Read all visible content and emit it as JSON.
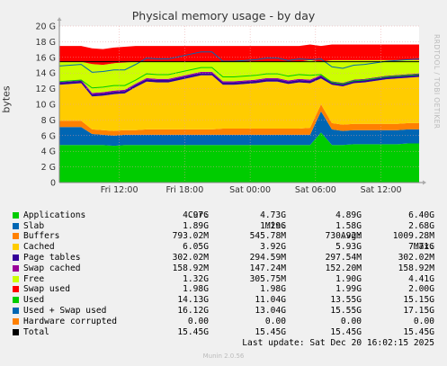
{
  "chart_data": {
    "type": "area",
    "title": "Physical memory usage - by day",
    "ylabel": "bytes",
    "ylim": [
      0,
      20
    ],
    "yticks": [
      "0",
      "2 G",
      "4 G",
      "6 G",
      "8 G",
      "10 G",
      "12 G",
      "14 G",
      "16 G",
      "18 G",
      "20 G"
    ],
    "xticks": [
      "Fri 12:00",
      "Fri 18:00",
      "Sat 00:00",
      "Sat 06:00",
      "Sat 12:00"
    ],
    "x": [
      "Fri 06:30",
      "Fri 07:30",
      "Fri 08:30",
      "Fri 09:30",
      "Fri 10:30",
      "Fri 11:30",
      "Fri 12:30",
      "Fri 13:30",
      "Fri 14:30",
      "Fri 15:30",
      "Fri 16:30",
      "Fri 17:30",
      "Fri 18:30",
      "Fri 19:30",
      "Fri 20:30",
      "Fri 21:30",
      "Fri 22:30",
      "Fri 23:30",
      "Sat 00:30",
      "Sat 01:30",
      "Sat 02:30",
      "Sat 03:30",
      "Sat 04:30",
      "Sat 05:30",
      "Sat 06:30",
      "Sat 07:30",
      "Sat 08:30",
      "Sat 09:30",
      "Sat 10:30",
      "Sat 11:30",
      "Sat 12:30",
      "Sat 13:30",
      "Sat 14:30",
      "Sat 15:30"
    ],
    "grid": true,
    "series": [
      {
        "name": "Applications",
        "color": "#00cc00",
        "values": [
          4.8,
          4.8,
          4.8,
          4.8,
          4.8,
          4.7,
          4.8,
          4.8,
          4.8,
          4.8,
          4.8,
          4.8,
          4.8,
          4.8,
          4.8,
          4.8,
          4.8,
          4.8,
          4.8,
          4.8,
          4.8,
          4.8,
          4.8,
          4.8,
          6.4,
          4.8,
          4.8,
          4.9,
          4.9,
          4.9,
          4.9,
          4.9,
          5.0,
          5.0
        ]
      },
      {
        "name": "Slab",
        "color": "#0066b3",
        "values": [
          2.3,
          2.3,
          2.3,
          1.4,
          1.3,
          1.3,
          1.3,
          1.3,
          1.3,
          1.3,
          1.3,
          1.3,
          1.3,
          1.3,
          1.3,
          1.3,
          1.3,
          1.3,
          1.3,
          1.3,
          1.3,
          1.3,
          1.3,
          1.3,
          2.7,
          2.0,
          1.8,
          1.8,
          1.8,
          1.8,
          1.8,
          1.8,
          1.8,
          1.8
        ]
      },
      {
        "name": "Buffers",
        "color": "#ff8000",
        "values": [
          0.8,
          0.8,
          0.8,
          0.6,
          0.6,
          0.6,
          0.6,
          0.6,
          0.7,
          0.7,
          0.7,
          0.7,
          0.7,
          0.7,
          0.7,
          0.8,
          0.8,
          0.8,
          0.8,
          0.8,
          0.8,
          0.8,
          0.8,
          0.9,
          0.9,
          0.8,
          0.8,
          0.8,
          0.8,
          0.8,
          0.8,
          0.8,
          0.8,
          0.8
        ]
      },
      {
        "name": "Cached",
        "color": "#ffcc00",
        "values": [
          4.6,
          4.7,
          4.8,
          4.2,
          4.4,
          4.7,
          4.7,
          5.5,
          6.1,
          6.0,
          6.0,
          6.3,
          6.6,
          6.9,
          6.9,
          5.6,
          5.6,
          5.7,
          5.8,
          6.0,
          6.0,
          5.7,
          5.9,
          5.7,
          3.3,
          4.9,
          4.9,
          5.2,
          5.3,
          5.5,
          5.7,
          5.8,
          5.8,
          5.9
        ]
      },
      {
        "name": "Page tables",
        "color": "#330099",
        "values": [
          0.3,
          0.3,
          0.3,
          0.3,
          0.3,
          0.3,
          0.3,
          0.3,
          0.3,
          0.3,
          0.3,
          0.3,
          0.3,
          0.3,
          0.3,
          0.3,
          0.3,
          0.3,
          0.3,
          0.3,
          0.3,
          0.3,
          0.3,
          0.3,
          0.3,
          0.3,
          0.3,
          0.3,
          0.3,
          0.3,
          0.3,
          0.3,
          0.3,
          0.3
        ]
      },
      {
        "name": "Swap cached",
        "color": "#990099",
        "values": [
          0.15,
          0.15,
          0.15,
          0.15,
          0.15,
          0.15,
          0.15,
          0.15,
          0.15,
          0.15,
          0.15,
          0.15,
          0.15,
          0.15,
          0.15,
          0.15,
          0.15,
          0.15,
          0.15,
          0.15,
          0.15,
          0.15,
          0.15,
          0.15,
          0.15,
          0.15,
          0.15,
          0.15,
          0.15,
          0.15,
          0.15,
          0.15,
          0.15,
          0.15
        ]
      },
      {
        "name": "Free",
        "color": "#ccff00",
        "values": [
          2.5,
          2.4,
          2.3,
          3.7,
          3.5,
          3.5,
          3.5,
          2.8,
          2.1,
          2.2,
          2.2,
          1.9,
          1.6,
          1.3,
          1.3,
          2.5,
          2.5,
          2.4,
          2.3,
          2.1,
          2.1,
          2.4,
          2.2,
          2.5,
          1.7,
          2.7,
          2.9,
          2.5,
          2.4,
          2.2,
          2.0,
          1.9,
          1.8,
          1.7
        ]
      },
      {
        "name": "Swap used",
        "color": "#ff0000",
        "values": [
          2.0,
          2.0,
          2.0,
          2.0,
          2.0,
          2.0,
          2.0,
          2.0,
          2.0,
          2.0,
          2.0,
          2.0,
          2.0,
          2.0,
          2.0,
          2.0,
          2.0,
          2.0,
          2.0,
          2.0,
          2.0,
          2.0,
          2.0,
          2.0,
          2.0,
          2.0,
          2.0,
          2.0,
          2.0,
          2.0,
          2.0,
          2.0,
          2.0,
          2.0
        ]
      },
      {
        "name": "Used",
        "color": "#00cc00",
        "values": [
          12.9,
          13.0,
          13.1,
          12.1,
          12.2,
          12.4,
          12.4,
          13.1,
          13.9,
          13.8,
          13.8,
          14.1,
          14.4,
          14.7,
          14.7,
          13.5,
          13.5,
          13.6,
          13.7,
          13.9,
          13.9,
          13.6,
          13.8,
          13.7,
          13.8,
          12.8,
          12.6,
          13.0,
          13.1,
          13.3,
          13.5,
          13.6,
          13.7,
          13.8
        ]
      },
      {
        "name": "Used + Swap used",
        "color": "#0066b3",
        "values": [
          14.9,
          15.0,
          15.1,
          14.1,
          14.2,
          14.4,
          14.4,
          15.1,
          15.9,
          15.8,
          15.8,
          16.1,
          16.4,
          16.7,
          16.7,
          15.5,
          15.5,
          15.6,
          15.7,
          15.9,
          15.9,
          15.6,
          15.8,
          15.7,
          15.8,
          14.8,
          14.6,
          15.0,
          15.1,
          15.3,
          15.5,
          15.6,
          15.7,
          15.8
        ]
      },
      {
        "name": "Hardware corrupted",
        "color": "#ff8000",
        "values": [
          0,
          0,
          0,
          0,
          0,
          0,
          0,
          0,
          0,
          0,
          0,
          0,
          0,
          0,
          0,
          0,
          0,
          0,
          0,
          0,
          0,
          0,
          0,
          0,
          0,
          0,
          0,
          0,
          0,
          0,
          0,
          0,
          0,
          0
        ]
      },
      {
        "name": "Total",
        "color": "#000000",
        "values": [
          15.45,
          15.45,
          15.45,
          15.45,
          15.45,
          15.45,
          15.45,
          15.45,
          15.45,
          15.45,
          15.45,
          15.45,
          15.45,
          15.45,
          15.45,
          15.45,
          15.45,
          15.45,
          15.45,
          15.45,
          15.45,
          15.45,
          15.45,
          15.45,
          15.45,
          15.45,
          15.45,
          15.45,
          15.45,
          15.45,
          15.45,
          15.45,
          15.45,
          15.45
        ]
      }
    ],
    "legend": {
      "headers": [
        "Cur:",
        "Min:",
        "Avg:",
        "Max:"
      ],
      "rows": [
        {
          "name": "Applications",
          "color": "#00cc00",
          "cur": "4.97G",
          "min": "4.73G",
          "avg": "4.89G",
          "max": "6.40G"
        },
        {
          "name": "Slab",
          "color": "#0066b3",
          "cur": "1.89G",
          "min": "1.29G",
          "avg": "1.58G",
          "max": "2.68G"
        },
        {
          "name": "Buffers",
          "color": "#ff8000",
          "cur": "793.02M",
          "min": "545.78M",
          "avg": "730.92M",
          "max": "1009.28M"
        },
        {
          "name": "Cached",
          "color": "#ffcc00",
          "cur": "6.05G",
          "min": "3.92G",
          "avg": "5.93G",
          "max": "7.71G"
        },
        {
          "name": "Page tables",
          "color": "#330099",
          "cur": "302.02M",
          "min": "294.59M",
          "avg": "297.54M",
          "max": "302.02M"
        },
        {
          "name": "Swap cached",
          "color": "#990099",
          "cur": "158.92M",
          "min": "147.24M",
          "avg": "152.20M",
          "max": "158.92M"
        },
        {
          "name": "Free",
          "color": "#ccff00",
          "cur": "1.32G",
          "min": "305.75M",
          "avg": "1.90G",
          "max": "4.41G"
        },
        {
          "name": "Swap used",
          "color": "#ff0000",
          "cur": "1.98G",
          "min": "1.98G",
          "avg": "1.99G",
          "max": "2.00G"
        },
        {
          "name": "Used",
          "color": "#00cc00",
          "cur": "14.13G",
          "min": "11.04G",
          "avg": "13.55G",
          "max": "15.15G"
        },
        {
          "name": "Used + Swap used",
          "color": "#0066b3",
          "cur": "16.12G",
          "min": "13.04G",
          "avg": "15.55G",
          "max": "17.15G"
        },
        {
          "name": "Hardware corrupted",
          "color": "#ff8000",
          "cur": "0.00",
          "min": "0.00",
          "avg": "0.00",
          "max": "0.00"
        },
        {
          "name": "Total",
          "color": "#000000",
          "cur": "15.45G",
          "min": "15.45G",
          "avg": "15.45G",
          "max": "15.45G"
        }
      ]
    }
  },
  "watermark": "RRDTOOL / TOBI OETIKER",
  "last_update": "Last update: Sat Dec 20 16:02:15 2025",
  "footer": "Munin 2.0.56"
}
